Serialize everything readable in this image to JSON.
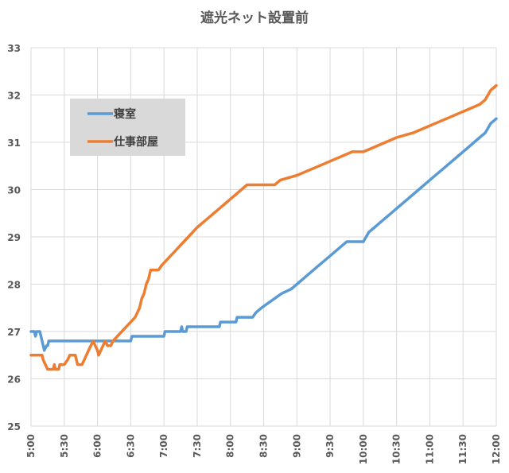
{
  "chart_data": {
    "type": "line",
    "title": "遮光ネット設置前",
    "xlabel": "",
    "ylabel": "",
    "x_ticks": [
      "5:00",
      "5:30",
      "6:00",
      "6:30",
      "7:00",
      "7:30",
      "8:00",
      "8:30",
      "9:00",
      "9:30",
      "10:00",
      "10:30",
      "11:00",
      "11:30",
      "12:00"
    ],
    "x_range": [
      "5:00",
      "12:00"
    ],
    "ylim": [
      25,
      33
    ],
    "y_ticks": [
      25,
      26,
      27,
      28,
      29,
      30,
      31,
      32,
      33
    ],
    "grid": true,
    "legend_position": "top-left",
    "series": [
      {
        "name": "寝室",
        "color": "#5B9BD5",
        "points": [
          [
            "5:00",
            27.0
          ],
          [
            "5:03",
            27.0
          ],
          [
            "5:04",
            26.9
          ],
          [
            "5:05",
            27.0
          ],
          [
            "5:08",
            27.0
          ],
          [
            "5:09",
            26.9
          ],
          [
            "5:10",
            26.8
          ],
          [
            "5:11",
            26.7
          ],
          [
            "5:12",
            26.6
          ],
          [
            "5:14",
            26.7
          ],
          [
            "5:15",
            26.7
          ],
          [
            "5:16",
            26.8
          ],
          [
            "6:00",
            26.8
          ],
          [
            "6:30",
            26.8
          ],
          [
            "6:31",
            26.9
          ],
          [
            "7:00",
            26.9
          ],
          [
            "7:01",
            27.0
          ],
          [
            "7:15",
            27.0
          ],
          [
            "7:16",
            27.1
          ],
          [
            "7:17",
            27.0
          ],
          [
            "7:20",
            27.0
          ],
          [
            "7:21",
            27.1
          ],
          [
            "7:50",
            27.1
          ],
          [
            "7:51",
            27.2
          ],
          [
            "8:05",
            27.2
          ],
          [
            "8:06",
            27.3
          ],
          [
            "8:20",
            27.3
          ],
          [
            "8:23",
            27.4
          ],
          [
            "8:28",
            27.5
          ],
          [
            "8:34",
            27.6
          ],
          [
            "8:40",
            27.7
          ],
          [
            "8:46",
            27.8
          ],
          [
            "8:55",
            27.9
          ],
          [
            "9:00",
            28.0
          ],
          [
            "9:05",
            28.1
          ],
          [
            "9:10",
            28.2
          ],
          [
            "9:15",
            28.3
          ],
          [
            "9:20",
            28.4
          ],
          [
            "9:25",
            28.5
          ],
          [
            "9:30",
            28.6
          ],
          [
            "9:35",
            28.7
          ],
          [
            "9:40",
            28.8
          ],
          [
            "9:45",
            28.9
          ],
          [
            "10:00",
            28.9
          ],
          [
            "10:05",
            29.1
          ],
          [
            "10:10",
            29.2
          ],
          [
            "10:15",
            29.3
          ],
          [
            "10:20",
            29.4
          ],
          [
            "10:25",
            29.5
          ],
          [
            "10:30",
            29.6
          ],
          [
            "10:35",
            29.7
          ],
          [
            "10:40",
            29.8
          ],
          [
            "10:45",
            29.9
          ],
          [
            "10:50",
            30.0
          ],
          [
            "10:55",
            30.1
          ],
          [
            "11:00",
            30.2
          ],
          [
            "11:05",
            30.3
          ],
          [
            "11:10",
            30.4
          ],
          [
            "11:15",
            30.5
          ],
          [
            "11:20",
            30.6
          ],
          [
            "11:25",
            30.7
          ],
          [
            "11:30",
            30.8
          ],
          [
            "11:35",
            30.9
          ],
          [
            "11:40",
            31.0
          ],
          [
            "11:45",
            31.1
          ],
          [
            "11:50",
            31.2
          ],
          [
            "11:55",
            31.4
          ],
          [
            "12:00",
            31.5
          ]
        ]
      },
      {
        "name": "仕事部屋",
        "color": "#ED7D31",
        "points": [
          [
            "5:00",
            26.5
          ],
          [
            "5:10",
            26.5
          ],
          [
            "5:11",
            26.4
          ],
          [
            "5:13",
            26.3
          ],
          [
            "5:15",
            26.2
          ],
          [
            "5:20",
            26.2
          ],
          [
            "5:21",
            26.3
          ],
          [
            "5:22",
            26.2
          ],
          [
            "5:25",
            26.2
          ],
          [
            "5:26",
            26.3
          ],
          [
            "5:30",
            26.3
          ],
          [
            "5:33",
            26.4
          ],
          [
            "5:35",
            26.5
          ],
          [
            "5:40",
            26.5
          ],
          [
            "5:42",
            26.3
          ],
          [
            "5:46",
            26.3
          ],
          [
            "5:48",
            26.4
          ],
          [
            "5:50",
            26.5
          ],
          [
            "5:52",
            26.6
          ],
          [
            "5:54",
            26.7
          ],
          [
            "5:56",
            26.8
          ],
          [
            "5:58",
            26.7
          ],
          [
            "6:00",
            26.6
          ],
          [
            "6:01",
            26.5
          ],
          [
            "6:03",
            26.6
          ],
          [
            "6:05",
            26.7
          ],
          [
            "6:07",
            26.8
          ],
          [
            "6:09",
            26.7
          ],
          [
            "6:12",
            26.7
          ],
          [
            "6:14",
            26.8
          ],
          [
            "6:18",
            26.9
          ],
          [
            "6:22",
            27.0
          ],
          [
            "6:26",
            27.1
          ],
          [
            "6:30",
            27.2
          ],
          [
            "6:34",
            27.3
          ],
          [
            "6:36",
            27.4
          ],
          [
            "6:38",
            27.5
          ],
          [
            "6:40",
            27.7
          ],
          [
            "6:42",
            27.8
          ],
          [
            "6:44",
            28.0
          ],
          [
            "6:46",
            28.1
          ],
          [
            "6:48",
            28.3
          ],
          [
            "6:55",
            28.3
          ],
          [
            "6:58",
            28.4
          ],
          [
            "7:02",
            28.5
          ],
          [
            "7:06",
            28.6
          ],
          [
            "7:10",
            28.7
          ],
          [
            "7:14",
            28.8
          ],
          [
            "7:18",
            28.9
          ],
          [
            "7:22",
            29.0
          ],
          [
            "7:26",
            29.1
          ],
          [
            "7:30",
            29.2
          ],
          [
            "7:35",
            29.3
          ],
          [
            "7:40",
            29.4
          ],
          [
            "7:45",
            29.5
          ],
          [
            "7:50",
            29.6
          ],
          [
            "7:55",
            29.7
          ],
          [
            "8:00",
            29.8
          ],
          [
            "8:05",
            29.9
          ],
          [
            "8:10",
            30.0
          ],
          [
            "8:15",
            30.1
          ],
          [
            "8:40",
            30.1
          ],
          [
            "8:45",
            30.2
          ],
          [
            "9:00",
            30.3
          ],
          [
            "9:10",
            30.4
          ],
          [
            "9:20",
            30.5
          ],
          [
            "9:30",
            30.6
          ],
          [
            "9:40",
            30.7
          ],
          [
            "9:50",
            30.8
          ],
          [
            "10:00",
            30.8
          ],
          [
            "10:10",
            30.9
          ],
          [
            "10:20",
            31.0
          ],
          [
            "10:30",
            31.1
          ],
          [
            "10:45",
            31.2
          ],
          [
            "10:55",
            31.3
          ],
          [
            "11:05",
            31.4
          ],
          [
            "11:15",
            31.5
          ],
          [
            "11:25",
            31.6
          ],
          [
            "11:35",
            31.7
          ],
          [
            "11:45",
            31.8
          ],
          [
            "11:50",
            31.9
          ],
          [
            "11:55",
            32.1
          ],
          [
            "12:00",
            32.2
          ]
        ]
      }
    ]
  }
}
